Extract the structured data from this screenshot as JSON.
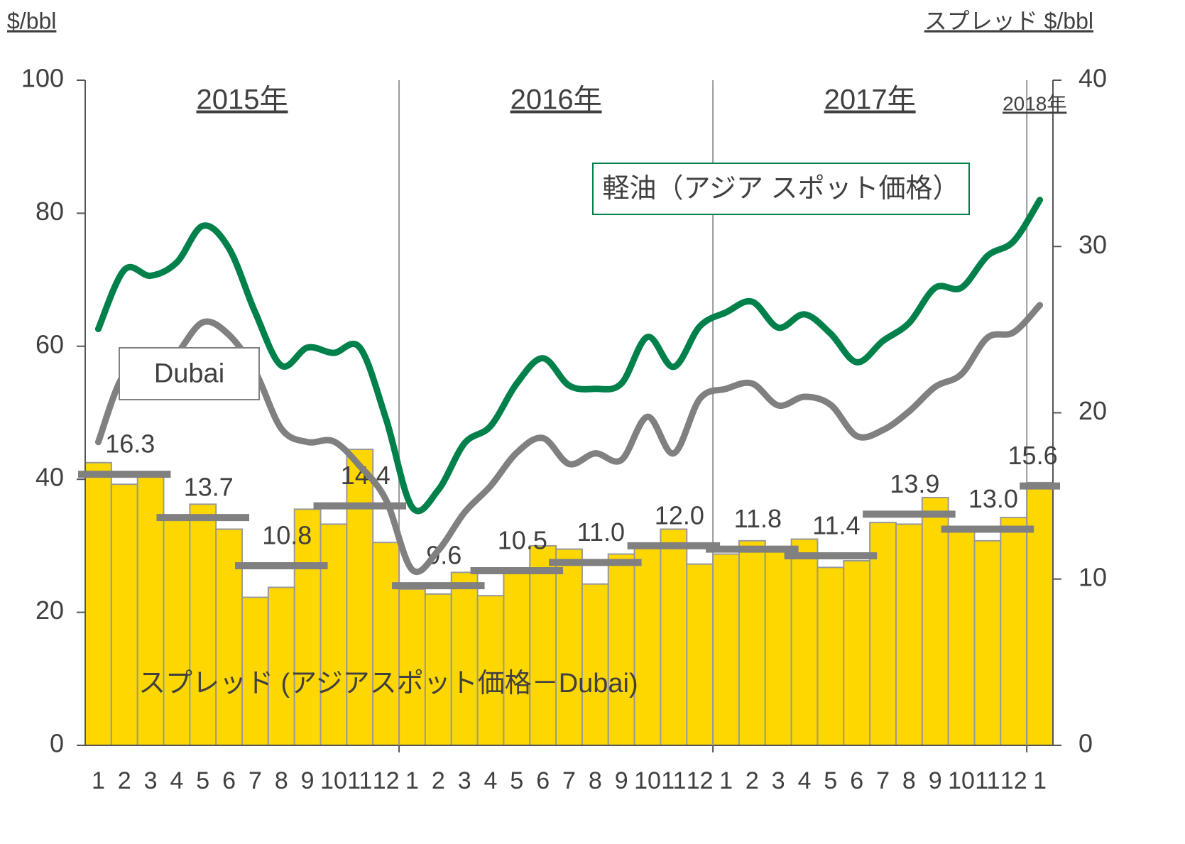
{
  "chart_data": {
    "type": "bar",
    "y_label": "$/bbl",
    "y2_label": "スプレッド $/bbl",
    "year_labels": [
      "2015年",
      "2016年",
      "2017年",
      "2018年"
    ],
    "categories": [
      "1",
      "2",
      "3",
      "4",
      "5",
      "6",
      "7",
      "8",
      "9",
      "10",
      "11",
      "12",
      "1",
      "2",
      "3",
      "4",
      "5",
      "6",
      "7",
      "8",
      "9",
      "10",
      "11",
      "12",
      "1",
      "2",
      "3",
      "4",
      "5",
      "6",
      "7",
      "8",
      "9",
      "10",
      "11",
      "12",
      "1"
    ],
    "ylim": [
      0,
      100
    ],
    "yticks": [
      0,
      20,
      40,
      60,
      80,
      100
    ],
    "y2lim": [
      0,
      40
    ],
    "y2ticks": [
      0,
      10,
      20,
      30,
      40
    ],
    "series": [
      {
        "name": "スプレッド (アジアスポット価格－Dubai)",
        "type": "bar",
        "axis": "y2",
        "color": "#ffd700",
        "values": [
          17.0,
          15.7,
          16.3,
          13.8,
          14.5,
          13.0,
          8.9,
          9.5,
          14.2,
          13.3,
          17.8,
          12.2,
          9.4,
          9.1,
          10.4,
          9.0,
          10.4,
          12.0,
          11.8,
          9.7,
          11.5,
          12.0,
          13.0,
          10.9,
          11.5,
          12.3,
          11.7,
          12.4,
          10.7,
          11.1,
          13.4,
          13.3,
          14.9,
          13.0,
          12.3,
          13.7,
          15.8
        ]
      },
      {
        "name": "軽油（アジア スポット価格）",
        "type": "line",
        "color": "#00804a",
        "values": [
          62.6,
          71.5,
          70.6,
          72.6,
          78.1,
          74.7,
          65.1,
          57.1,
          59.8,
          59.0,
          59.8,
          49.1,
          35.8,
          38.4,
          45.4,
          48.0,
          54.4,
          58.2,
          54.1,
          53.6,
          54.4,
          61.4,
          56.9,
          63.0,
          65.1,
          66.7,
          62.8,
          64.8,
          61.9,
          57.6,
          60.8,
          63.5,
          68.8,
          68.8,
          73.6,
          75.8,
          82.0
        ]
      },
      {
        "name": "Dubai",
        "type": "line",
        "color": "#808080",
        "values": [
          45.6,
          55.8,
          54.3,
          58.8,
          63.6,
          61.7,
          56.2,
          47.6,
          45.6,
          45.7,
          42.0,
          36.9,
          26.4,
          29.3,
          35.0,
          39.0,
          44.0,
          46.2,
          42.3,
          43.9,
          42.9,
          49.4,
          43.9,
          52.1,
          53.6,
          54.4,
          51.1,
          52.4,
          51.2,
          46.5,
          47.4,
          50.2,
          53.9,
          55.8,
          61.3,
          62.1,
          66.2
        ]
      }
    ],
    "quarterly": {
      "color": "#808080",
      "axis": "y2",
      "values": [
        16.3,
        13.7,
        10.8,
        14.4,
        9.6,
        10.5,
        11.0,
        12.0,
        11.8,
        11.4,
        13.9,
        13.0,
        15.6
      ],
      "value_labels": [
        "16.3",
        "13.7",
        "10.8",
        "14.4",
        "9.6",
        "10.5",
        "11.0",
        "12.0",
        "11.8",
        "11.4",
        "13.9",
        "13.0",
        "15.6"
      ]
    }
  }
}
